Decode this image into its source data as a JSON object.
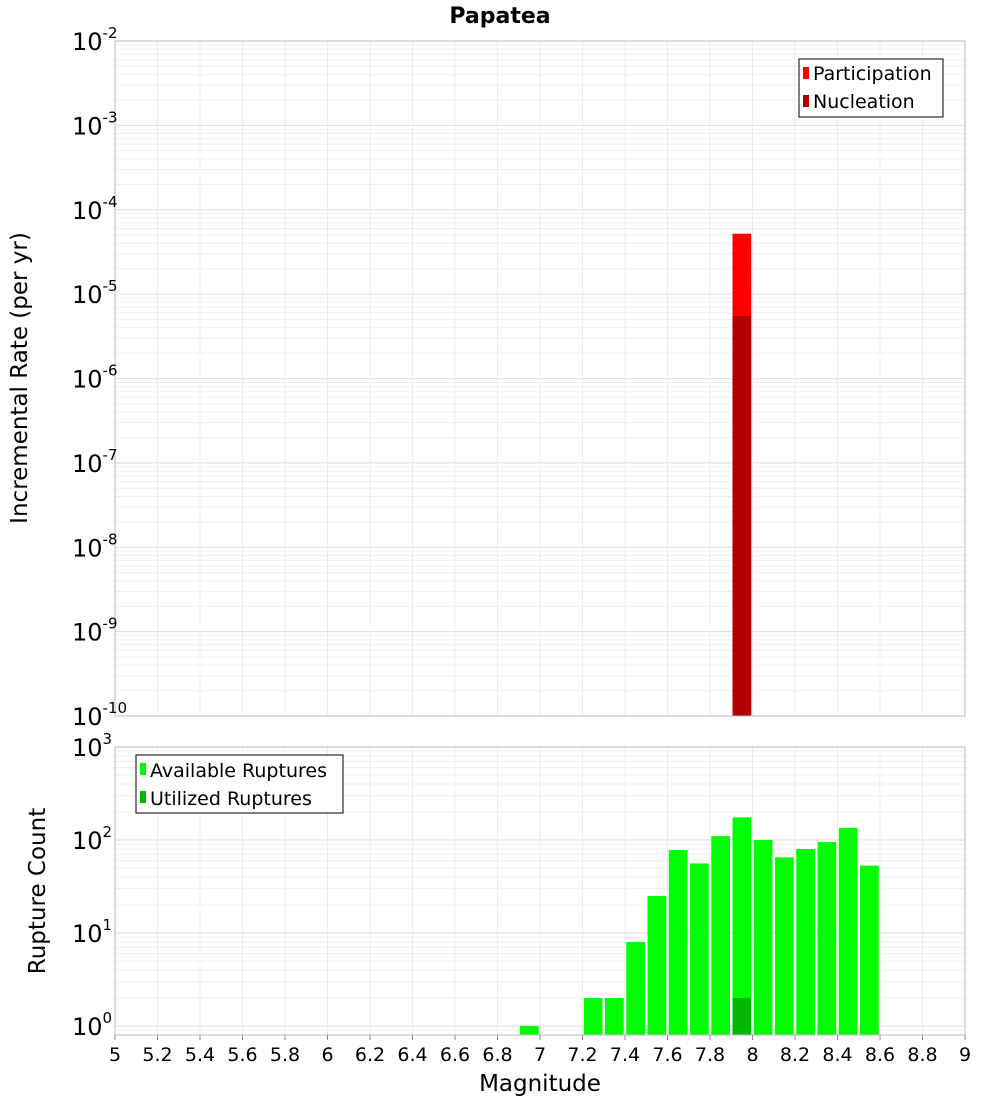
{
  "chart_data": [
    {
      "type": "bar",
      "title": "Papatea",
      "xlabel": "Magnitude",
      "ylabel": "Incremental Rate (per yr)",
      "yscale": "log",
      "ylim": [
        1e-10,
        0.01
      ],
      "xlim": [
        5,
        9
      ],
      "grid": true,
      "legend_position": "top-right",
      "series": [
        {
          "name": "Participation",
          "color": "#ff0000",
          "x": [
            7.95
          ],
          "values": [
            5.2e-05
          ]
        },
        {
          "name": "Nucleation",
          "color": "#b30000",
          "x": [
            7.95
          ],
          "values": [
            5.5e-06
          ]
        }
      ],
      "y_ticks": [
        {
          "base": "10",
          "exp": "-10"
        },
        {
          "base": "10",
          "exp": "-9"
        },
        {
          "base": "10",
          "exp": "-8"
        },
        {
          "base": "10",
          "exp": "-7"
        },
        {
          "base": "10",
          "exp": "-6"
        },
        {
          "base": "10",
          "exp": "-5"
        },
        {
          "base": "10",
          "exp": "-4"
        },
        {
          "base": "10",
          "exp": "-3"
        },
        {
          "base": "10",
          "exp": "-2"
        }
      ]
    },
    {
      "type": "bar",
      "xlabel": "Magnitude",
      "ylabel": "Rupture Count",
      "yscale": "log",
      "ylim": [
        0.8,
        1000
      ],
      "xlim": [
        5,
        9
      ],
      "grid": true,
      "legend_position": "top-left",
      "x_ticks": [
        "5",
        "5.2",
        "5.4",
        "5.6",
        "5.8",
        "6",
        "6.2",
        "6.4",
        "6.6",
        "6.8",
        "7",
        "7.2",
        "7.4",
        "7.6",
        "7.8",
        "8",
        "8.2",
        "8.4",
        "8.6",
        "8.8",
        "9"
      ],
      "series": [
        {
          "name": "Available Ruptures",
          "color": "#00ff00",
          "x": [
            6.95,
            7.25,
            7.35,
            7.45,
            7.55,
            7.65,
            7.75,
            7.85,
            7.95,
            8.05,
            8.15,
            8.25,
            8.35,
            8.45,
            8.55
          ],
          "values": [
            1,
            2,
            2,
            8,
            25,
            78,
            56,
            110,
            175,
            100,
            65,
            80,
            95,
            135,
            53
          ]
        },
        {
          "name": "Utilized Ruptures",
          "color": "#00b800",
          "x": [
            7.95
          ],
          "values": [
            2
          ]
        }
      ],
      "y_ticks": [
        {
          "base": "10",
          "exp": "0"
        },
        {
          "base": "10",
          "exp": "1"
        },
        {
          "base": "10",
          "exp": "2"
        },
        {
          "base": "10",
          "exp": "3"
        }
      ]
    }
  ]
}
